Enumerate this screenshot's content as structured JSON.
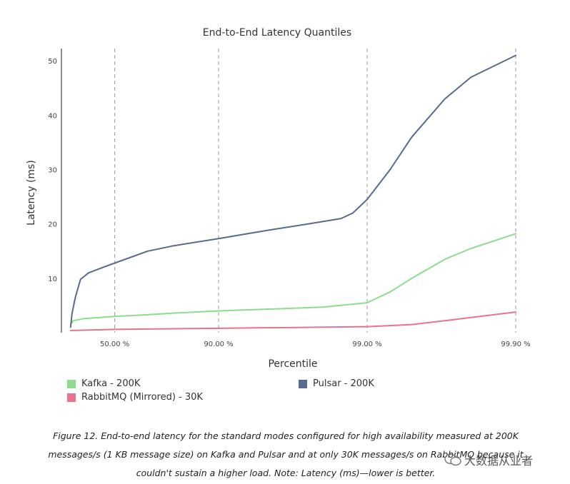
{
  "chart_data": {
    "type": "line",
    "title": "End-to-End Latency Quantiles",
    "xlabel": "Percentile",
    "ylabel": "Latency (ms)",
    "x_scale": "quantile (log of tail)",
    "x_ticks": [
      "50.00 %",
      "90.00 %",
      "99.00 %",
      "99.90 %"
    ],
    "x_tick_values": [
      50,
      90,
      99,
      99.9
    ],
    "y_ticks": [
      10,
      20,
      30,
      40,
      50
    ],
    "ylim": [
      0,
      52
    ],
    "grid": "vertical dashed at x ticks",
    "series": [
      {
        "name": "Kafka - 200K",
        "color": "#8edb8e",
        "points": [
          [
            1,
            1.5
          ],
          [
            5,
            2.2
          ],
          [
            20,
            2.6
          ],
          [
            50,
            3.0
          ],
          [
            70,
            3.3
          ],
          [
            80,
            3.6
          ],
          [
            90,
            4.0
          ],
          [
            95,
            4.3
          ],
          [
            98,
            4.7
          ],
          [
            99,
            5.5
          ],
          [
            99.3,
            7.5
          ],
          [
            99.5,
            10
          ],
          [
            99.7,
            13.5
          ],
          [
            99.8,
            15.5
          ],
          [
            99.9,
            18.2
          ]
        ]
      },
      {
        "name": "Pulsar - 200K",
        "color": "#566b8f",
        "points": [
          [
            1,
            1.0
          ],
          [
            3,
            3.5
          ],
          [
            8,
            6.5
          ],
          [
            15,
            9.8
          ],
          [
            25,
            11.0
          ],
          [
            40,
            12.0
          ],
          [
            50,
            12.8
          ],
          [
            70,
            15.0
          ],
          [
            80,
            16.0
          ],
          [
            90,
            17.3
          ],
          [
            95,
            18.7
          ],
          [
            97.5,
            20.0
          ],
          [
            98.5,
            21.0
          ],
          [
            98.75,
            22.0
          ],
          [
            99,
            24.5
          ],
          [
            99.3,
            30
          ],
          [
            99.5,
            36
          ],
          [
            99.7,
            43
          ],
          [
            99.8,
            47
          ],
          [
            99.9,
            51
          ]
        ]
      },
      {
        "name": "RabbitMQ (Mirrored) - 30K",
        "color": "#e8738f",
        "points": [
          [
            1,
            0.4
          ],
          [
            50,
            0.6
          ],
          [
            90,
            0.8
          ],
          [
            99,
            1.1
          ],
          [
            99.5,
            1.5
          ],
          [
            99.7,
            2.2
          ],
          [
            99.8,
            2.8
          ],
          [
            99.9,
            3.8
          ]
        ]
      }
    ],
    "legend": {
      "placement": "bottom",
      "entries": [
        "Kafka - 200K",
        "Pulsar - 200K",
        "RabbitMQ (Mirrored) - 30K"
      ]
    }
  },
  "caption": {
    "line1": "Figure 12. End-to-end latency for the standard modes configured for high availability measured at 200K",
    "line2": "messages/s (1 KB message size) on Kafka and Pulsar and at only 30K messages/s on RabbitMQ because it",
    "line3": "couldn't sustain a higher load. Note: Latency (ms)—lower is better."
  },
  "watermark": {
    "text": "大数据从业者"
  }
}
